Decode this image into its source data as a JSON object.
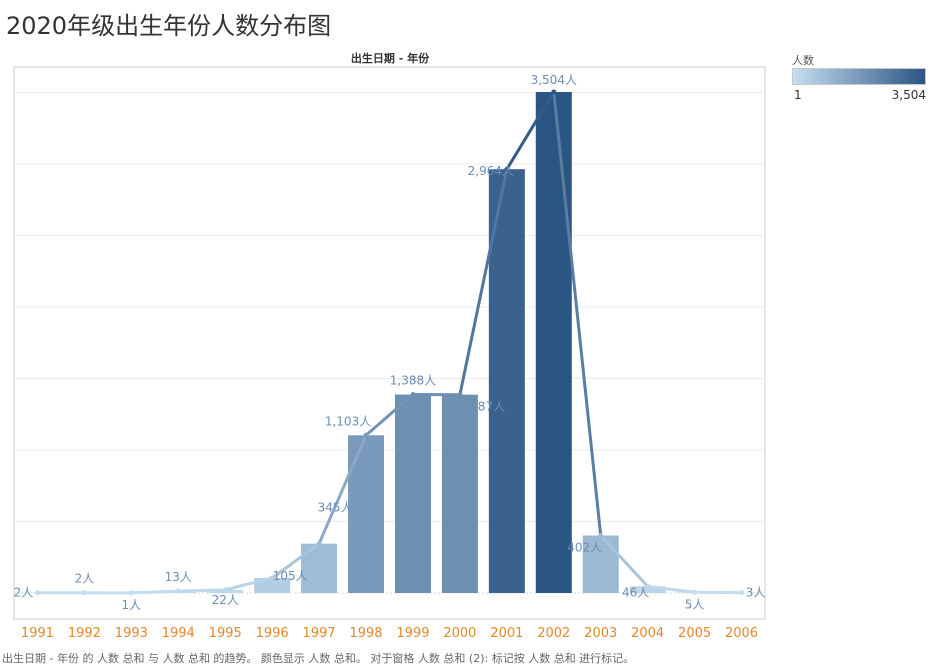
{
  "page": {
    "title": "2020年级出生年份人数分布图",
    "chart_header": "出生日期 - 年份",
    "footer": "出生日期 - 年份 的 人数 总和 与 人数 总和 的趋势。 颜色显示 人数 总和。 对于窗格 人数 总和 (2): 标记按 人数 总和 进行标记。"
  },
  "legend": {
    "title": "人数",
    "min_label": "1",
    "max_label": "3,504",
    "color_low": "#c6def0",
    "color_high": "#2b5583"
  },
  "colors": {
    "tick_label": "#e8862a",
    "data_label": "#6b8fb5",
    "grid": "#ebebeb",
    "axis": "#cccccc"
  },
  "chart_data": {
    "type": "bar",
    "title": "",
    "xlabel": "",
    "ylabel": "",
    "ylim": [
      0,
      3700
    ],
    "grid": true,
    "categories": [
      "1991",
      "1992",
      "1993",
      "1994",
      "1995",
      "1996",
      "1997",
      "1998",
      "1999",
      "2000",
      "2001",
      "2002",
      "2003",
      "2004",
      "2005",
      "2006"
    ],
    "values": [
      2,
      2,
      1,
      13,
      22,
      105,
      345,
      1103,
      1388,
      1387,
      2964,
      3504,
      402,
      46,
      5,
      3
    ],
    "value_labels": [
      "2人",
      "2人",
      "1人",
      "13人",
      "22人",
      "105人",
      "345人",
      "1,103人",
      "1,388人",
      "1,387人",
      "2,964人",
      "3,504人",
      "402人",
      "46人",
      "5人",
      "3人"
    ],
    "overlay": {
      "type": "line",
      "values": [
        2,
        2,
        1,
        13,
        22,
        105,
        345,
        1103,
        1388,
        1387,
        2964,
        3504,
        402,
        46,
        5,
        3
      ]
    }
  }
}
